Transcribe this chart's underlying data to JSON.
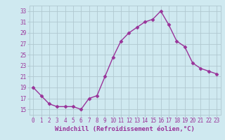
{
  "x": [
    0,
    1,
    2,
    3,
    4,
    5,
    6,
    7,
    8,
    9,
    10,
    11,
    12,
    13,
    14,
    15,
    16,
    17,
    18,
    19,
    20,
    21,
    22,
    23
  ],
  "y": [
    19,
    17.5,
    16,
    15.5,
    15.5,
    15.5,
    15,
    17,
    17.5,
    21,
    24.5,
    27.5,
    29,
    30,
    31,
    31.5,
    33,
    30.5,
    27.5,
    26.5,
    23.5,
    22.5,
    22,
    21.5
  ],
  "line_color": "#993399",
  "marker": "D",
  "marker_size": 2.5,
  "xlabel": "Windchill (Refroidissement éolien,°C)",
  "xlabel_fontsize": 6.5,
  "ylim": [
    14,
    34
  ],
  "xlim": [
    -0.5,
    23.5
  ],
  "yticks": [
    15,
    17,
    19,
    21,
    23,
    25,
    27,
    29,
    31,
    33
  ],
  "xticks": [
    0,
    1,
    2,
    3,
    4,
    5,
    6,
    7,
    8,
    9,
    10,
    11,
    12,
    13,
    14,
    15,
    16,
    17,
    18,
    19,
    20,
    21,
    22,
    23
  ],
  "background_color": "#cfe9f0",
  "grid_color": "#b0c8d0",
  "tick_fontsize": 5.5,
  "label_color": "#993399",
  "line_width": 1.0
}
